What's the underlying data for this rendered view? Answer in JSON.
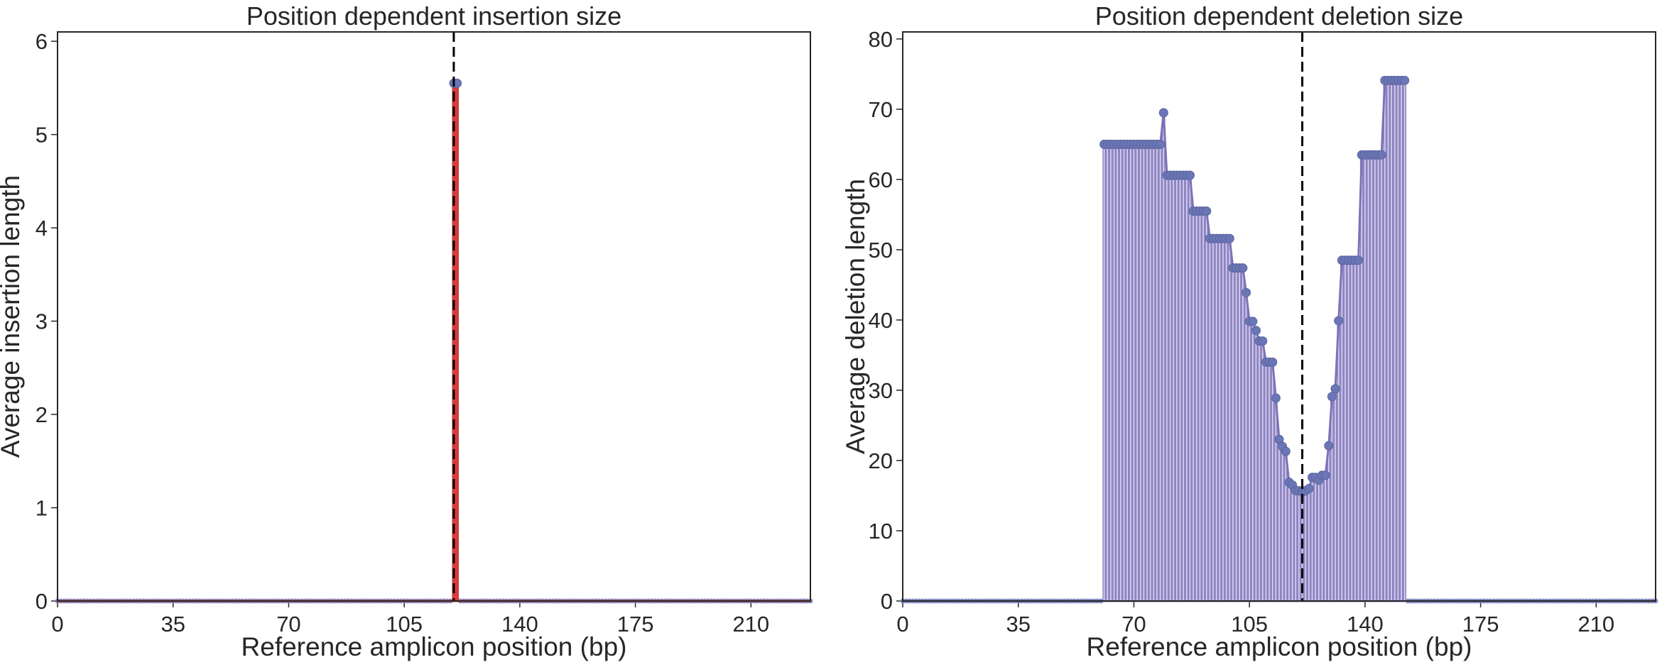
{
  "chart_data": [
    {
      "type": "bar",
      "title": "Position dependent insertion size",
      "xlabel": "Reference amplicon position (bp)",
      "ylabel": "Average insertion length",
      "xlim": [
        0,
        228
      ],
      "ylim": [
        0,
        6.1
      ],
      "xticks": [
        0,
        35,
        70,
        105,
        140,
        175,
        210
      ],
      "yticks": [
        0,
        1,
        2,
        3,
        4,
        5,
        6
      ],
      "cut_site": 120,
      "grid": false,
      "series": [
        {
          "values": [
            {
              "x": 120,
              "y": 5.55
            },
            {
              "x": 121,
              "y": 5.55
            }
          ]
        }
      ],
      "colors": {
        "stem": "#d33c3c",
        "marker": "#6b76b5",
        "cut_line": "#000000"
      }
    },
    {
      "type": "bar",
      "title": "Position dependent deletion size",
      "xlabel": "Reference amplicon position (bp)",
      "ylabel": "Average deletion length",
      "xlim": [
        0,
        228
      ],
      "ylim": [
        0,
        81
      ],
      "xticks": [
        0,
        35,
        70,
        105,
        140,
        175,
        210
      ],
      "yticks": [
        0,
        10,
        20,
        30,
        40,
        50,
        60,
        70,
        80
      ],
      "cut_site": 121,
      "grid": false,
      "series": [
        {
          "values": [
            {
              "x": 61,
              "y": 65
            },
            {
              "x": 62,
              "y": 65
            },
            {
              "x": 63,
              "y": 65
            },
            {
              "x": 64,
              "y": 65
            },
            {
              "x": 65,
              "y": 65
            },
            {
              "x": 66,
              "y": 65
            },
            {
              "x": 67,
              "y": 65
            },
            {
              "x": 68,
              "y": 65
            },
            {
              "x": 69,
              "y": 65
            },
            {
              "x": 70,
              "y": 65
            },
            {
              "x": 71,
              "y": 65
            },
            {
              "x": 72,
              "y": 65
            },
            {
              "x": 73,
              "y": 65
            },
            {
              "x": 74,
              "y": 65
            },
            {
              "x": 75,
              "y": 65
            },
            {
              "x": 76,
              "y": 65
            },
            {
              "x": 77,
              "y": 65
            },
            {
              "x": 78,
              "y": 65
            },
            {
              "x": 79,
              "y": 69.5
            },
            {
              "x": 80,
              "y": 60.6
            },
            {
              "x": 81,
              "y": 60.6
            },
            {
              "x": 82,
              "y": 60.6
            },
            {
              "x": 83,
              "y": 60.6
            },
            {
              "x": 84,
              "y": 60.6
            },
            {
              "x": 85,
              "y": 60.6
            },
            {
              "x": 86,
              "y": 60.6
            },
            {
              "x": 87,
              "y": 60.6
            },
            {
              "x": 88,
              "y": 55.5
            },
            {
              "x": 89,
              "y": 55.5
            },
            {
              "x": 90,
              "y": 55.5
            },
            {
              "x": 91,
              "y": 55.5
            },
            {
              "x": 92,
              "y": 55.5
            },
            {
              "x": 93,
              "y": 51.6
            },
            {
              "x": 94,
              "y": 51.6
            },
            {
              "x": 95,
              "y": 51.6
            },
            {
              "x": 96,
              "y": 51.6
            },
            {
              "x": 97,
              "y": 51.6
            },
            {
              "x": 98,
              "y": 51.6
            },
            {
              "x": 99,
              "y": 51.6
            },
            {
              "x": 100,
              "y": 47.4
            },
            {
              "x": 101,
              "y": 47.4
            },
            {
              "x": 102,
              "y": 47.4
            },
            {
              "x": 103,
              "y": 47.4
            },
            {
              "x": 104,
              "y": 43.9
            },
            {
              "x": 105,
              "y": 39.8
            },
            {
              "x": 106,
              "y": 39.8
            },
            {
              "x": 107,
              "y": 38.5
            },
            {
              "x": 108,
              "y": 37.0
            },
            {
              "x": 109,
              "y": 37.0
            },
            {
              "x": 110,
              "y": 34.0
            },
            {
              "x": 111,
              "y": 34.0
            },
            {
              "x": 112,
              "y": 34.0
            },
            {
              "x": 113,
              "y": 28.9
            },
            {
              "x": 114,
              "y": 23.0
            },
            {
              "x": 115,
              "y": 22.0
            },
            {
              "x": 116,
              "y": 21.3
            },
            {
              "x": 117,
              "y": 16.9
            },
            {
              "x": 118,
              "y": 16.5
            },
            {
              "x": 119,
              "y": 15.7
            },
            {
              "x": 120,
              "y": 15.7
            },
            {
              "x": 121,
              "y": 15.5
            },
            {
              "x": 122,
              "y": 15.7
            },
            {
              "x": 123,
              "y": 16.0
            },
            {
              "x": 124,
              "y": 17.6
            },
            {
              "x": 125,
              "y": 17.6
            },
            {
              "x": 126,
              "y": 17.2
            },
            {
              "x": 127,
              "y": 17.9
            },
            {
              "x": 128,
              "y": 17.9
            },
            {
              "x": 129,
              "y": 22.1
            },
            {
              "x": 130,
              "y": 29.1
            },
            {
              "x": 131,
              "y": 30.2
            },
            {
              "x": 132,
              "y": 39.9
            },
            {
              "x": 133,
              "y": 48.5
            },
            {
              "x": 134,
              "y": 48.5
            },
            {
              "x": 135,
              "y": 48.5
            },
            {
              "x": 136,
              "y": 48.5
            },
            {
              "x": 137,
              "y": 48.5
            },
            {
              "x": 138,
              "y": 48.5
            },
            {
              "x": 139,
              "y": 63.5
            },
            {
              "x": 140,
              "y": 63.5
            },
            {
              "x": 141,
              "y": 63.5
            },
            {
              "x": 142,
              "y": 63.5
            },
            {
              "x": 143,
              "y": 63.5
            },
            {
              "x": 144,
              "y": 63.5
            },
            {
              "x": 145,
              "y": 63.5
            },
            {
              "x": 146,
              "y": 74.1
            },
            {
              "x": 147,
              "y": 74.1
            },
            {
              "x": 148,
              "y": 74.1
            },
            {
              "x": 149,
              "y": 74.1
            },
            {
              "x": 150,
              "y": 74.1
            },
            {
              "x": 151,
              "y": 74.1
            },
            {
              "x": 152,
              "y": 74.1
            }
          ]
        }
      ],
      "colors": {
        "stem": "#7c72b8",
        "marker": "#6b76b5",
        "fill": "#8e84c2",
        "cut_line": "#000000"
      }
    }
  ]
}
